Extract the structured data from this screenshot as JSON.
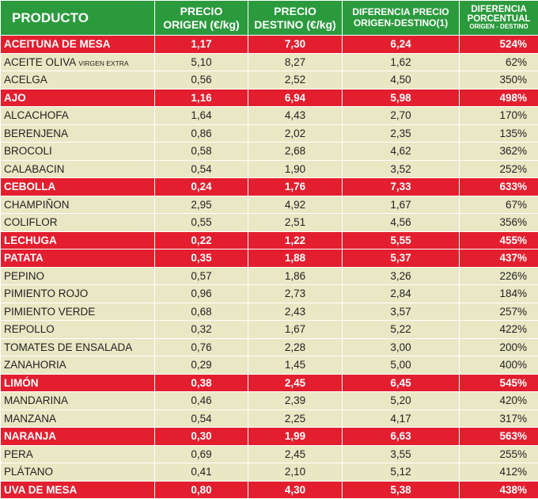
{
  "colors": {
    "header": "#2b9a3d",
    "highlight": "#e31e2e",
    "row": "#e9e7c4"
  },
  "headers": {
    "producto": "PRODUCTO",
    "origen_l1": "PRECIO",
    "origen_l2": "ORIGEN (€/kg)",
    "destino_l1": "PRECIO",
    "destino_l2": "DESTINO (€/kg)",
    "dif_l1": "DIFERENCIA PRECIO",
    "dif_l2": "ORIGEN-DESTINO(1)",
    "pct_l1": "DIFERENCIA",
    "pct_l2": "PORCENTUAL",
    "pct_l3": "ORIGEN - DESTINO"
  },
  "rows": [
    {
      "name": "ACEITUNA  DE MESA",
      "note": "",
      "origen": "1,17",
      "destino": "7,30",
      "diferencia": "6,24",
      "porcentaje": "524%",
      "highlight": true
    },
    {
      "name": "ACEITE OLIVA",
      "note": "VIRGEN EXTRA",
      "origen": "5,10",
      "destino": "8,27",
      "diferencia": "1,62",
      "porcentaje": "62%",
      "highlight": false
    },
    {
      "name": "ACELGA",
      "note": "",
      "origen": "0,56",
      "destino": "2,52",
      "diferencia": "4,50",
      "porcentaje": "350%",
      "highlight": false
    },
    {
      "name": "AJO",
      "note": "",
      "origen": "1,16",
      "destino": "6,94",
      "diferencia": "5,98",
      "porcentaje": "498%",
      "highlight": true
    },
    {
      "name": "ALCACHOFA",
      "note": "",
      "origen": "1,64",
      "destino": "4,43",
      "diferencia": "2,70",
      "porcentaje": "170%",
      "highlight": false
    },
    {
      "name": "BERENJENA",
      "note": "",
      "origen": "0,86",
      "destino": "2,02",
      "diferencia": "2,35",
      "porcentaje": "135%",
      "highlight": false
    },
    {
      "name": "BROCOLI",
      "note": "",
      "origen": "0,58",
      "destino": "2,68",
      "diferencia": "4,62",
      "porcentaje": "362%",
      "highlight": false
    },
    {
      "name": "CALABACIN",
      "note": "",
      "origen": "0,54",
      "destino": "1,90",
      "diferencia": "3,52",
      "porcentaje": "252%",
      "highlight": false
    },
    {
      "name": "CEBOLLA",
      "note": "",
      "origen": "0,24",
      "destino": "1,76",
      "diferencia": "7,33",
      "porcentaje": "633%",
      "highlight": true
    },
    {
      "name": "CHAMPIÑON",
      "note": "",
      "origen": "2,95",
      "destino": "4,92",
      "diferencia": "1,67",
      "porcentaje": "67%",
      "highlight": false
    },
    {
      "name": "COLIFLOR",
      "note": "",
      "origen": "0,55",
      "destino": "2,51",
      "diferencia": "4,56",
      "porcentaje": "356%",
      "highlight": false
    },
    {
      "name": "LECHUGA",
      "note": "",
      "origen": "0,22",
      "destino": "1,22",
      "diferencia": "5,55",
      "porcentaje": "455%",
      "highlight": true
    },
    {
      "name": "PATATA",
      "note": "",
      "origen": "0,35",
      "destino": "1,88",
      "diferencia": "5,37",
      "porcentaje": "437%",
      "highlight": true
    },
    {
      "name": "PEPINO",
      "note": "",
      "origen": "0,57",
      "destino": "1,86",
      "diferencia": "3,26",
      "porcentaje": "226%",
      "highlight": false
    },
    {
      "name": "PIMIENTO ROJO",
      "note": "",
      "origen": "0,96",
      "destino": "2,73",
      "diferencia": "2,84",
      "porcentaje": "184%",
      "highlight": false
    },
    {
      "name": "PIMIENTO VERDE",
      "note": "",
      "origen": "0,68",
      "destino": "2,43",
      "diferencia": "3,57",
      "porcentaje": "257%",
      "highlight": false
    },
    {
      "name": "REPOLLO",
      "note": "",
      "origen": "0,32",
      "destino": "1,67",
      "diferencia": "5,22",
      "porcentaje": "422%",
      "highlight": false
    },
    {
      "name": "TOMATES DE ENSALADA",
      "note": "",
      "origen": "0,76",
      "destino": "2,28",
      "diferencia": "3,00",
      "porcentaje": "200%",
      "highlight": false
    },
    {
      "name": "ZANAHORIA",
      "note": "",
      "origen": "0,29",
      "destino": "1,45",
      "diferencia": "5,00",
      "porcentaje": "400%",
      "highlight": false
    },
    {
      "name": "LIMÓN",
      "note": "",
      "origen": "0,38",
      "destino": "2,45",
      "diferencia": "6,45",
      "porcentaje": "545%",
      "highlight": true
    },
    {
      "name": "MANDARINA",
      "note": "",
      "origen": "0,46",
      "destino": "2,39",
      "diferencia": "5,20",
      "porcentaje": "420%",
      "highlight": false
    },
    {
      "name": "MANZANA",
      "note": "",
      "origen": "0,54",
      "destino": "2,25",
      "diferencia": "4,17",
      "porcentaje": "317%",
      "highlight": false
    },
    {
      "name": "NARANJA",
      "note": "",
      "origen": "0,30",
      "destino": "1,99",
      "diferencia": "6,63",
      "porcentaje": "563%",
      "highlight": true
    },
    {
      "name": "PERA",
      "note": "",
      "origen": "0,69",
      "destino": "2,45",
      "diferencia": "3,55",
      "porcentaje": "255%",
      "highlight": false
    },
    {
      "name": "PLÁTANO",
      "note": "",
      "origen": "0,41",
      "destino": "2,10",
      "diferencia": "5,12",
      "porcentaje": "412%",
      "highlight": false
    },
    {
      "name": "UVA DE MESA",
      "note": "",
      "origen": "0,80",
      "destino": "4,30",
      "diferencia": "5,38",
      "porcentaje": "438%",
      "highlight": true
    }
  ]
}
